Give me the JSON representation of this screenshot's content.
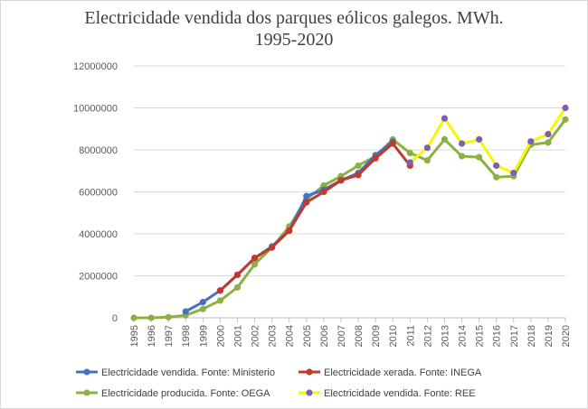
{
  "chart_data": {
    "type": "line",
    "title_line1": "Electricidade vendida dos parques eólicos galegos. MWh.",
    "title_line2": "1995-2020",
    "x": [
      "1995",
      "1996",
      "1997",
      "1998",
      "1999",
      "2000",
      "2001",
      "2002",
      "2003",
      "2004",
      "2005",
      "2006",
      "2007",
      "2008",
      "2009",
      "2010",
      "2011",
      "2012",
      "2013",
      "2014",
      "2015",
      "2016",
      "2017",
      "2018",
      "2019",
      "2020"
    ],
    "ylim": [
      0,
      12000000
    ],
    "yticks": [
      "0",
      "2000000",
      "4000000",
      "6000000",
      "8000000",
      "10000000",
      "12000000"
    ],
    "grid": true,
    "legend_position": "bottom",
    "series": [
      {
        "name": "Electricidade vendida. Fonte: Ministerio",
        "color": "#4472c4",
        "marker": "#4472c4",
        "values": [
          null,
          null,
          null,
          300000,
          750000,
          1300000,
          2050000,
          2850000,
          3400000,
          4150000,
          5800000,
          6100000,
          6550000,
          6900000,
          7750000,
          8400000,
          null,
          null,
          null,
          null,
          null,
          null,
          null,
          null,
          null,
          null
        ]
      },
      {
        "name": "Electricidade xerada. Fonte: INEGA",
        "color": "#c0392b",
        "marker": "#c0392b",
        "values": [
          null,
          null,
          null,
          null,
          null,
          1300000,
          2050000,
          2850000,
          3350000,
          4150000,
          5500000,
          6000000,
          6550000,
          6800000,
          7600000,
          8300000,
          7250000,
          null,
          null,
          null,
          null,
          null,
          null,
          null,
          null,
          null
        ]
      },
      {
        "name": "Electricidade producida. Fonte: OEGA",
        "color": "#8db045",
        "marker": "#8db045",
        "values": [
          0,
          0,
          30000,
          120000,
          420000,
          820000,
          1450000,
          2550000,
          3350000,
          4350000,
          5650000,
          6300000,
          6750000,
          7250000,
          7700000,
          8500000,
          7850000,
          7500000,
          8500000,
          7700000,
          7650000,
          6700000,
          6750000,
          8250000,
          8350000,
          9450000
        ]
      },
      {
        "name": "Electricidade vendida. Fonte: REE",
        "color": "#f7f700",
        "marker": "#7d5fb5",
        "values": [
          null,
          null,
          null,
          null,
          null,
          null,
          null,
          null,
          null,
          null,
          null,
          null,
          null,
          null,
          null,
          null,
          7400000,
          8100000,
          9500000,
          8300000,
          8500000,
          7250000,
          6900000,
          8400000,
          8750000,
          10000000
        ]
      }
    ]
  }
}
